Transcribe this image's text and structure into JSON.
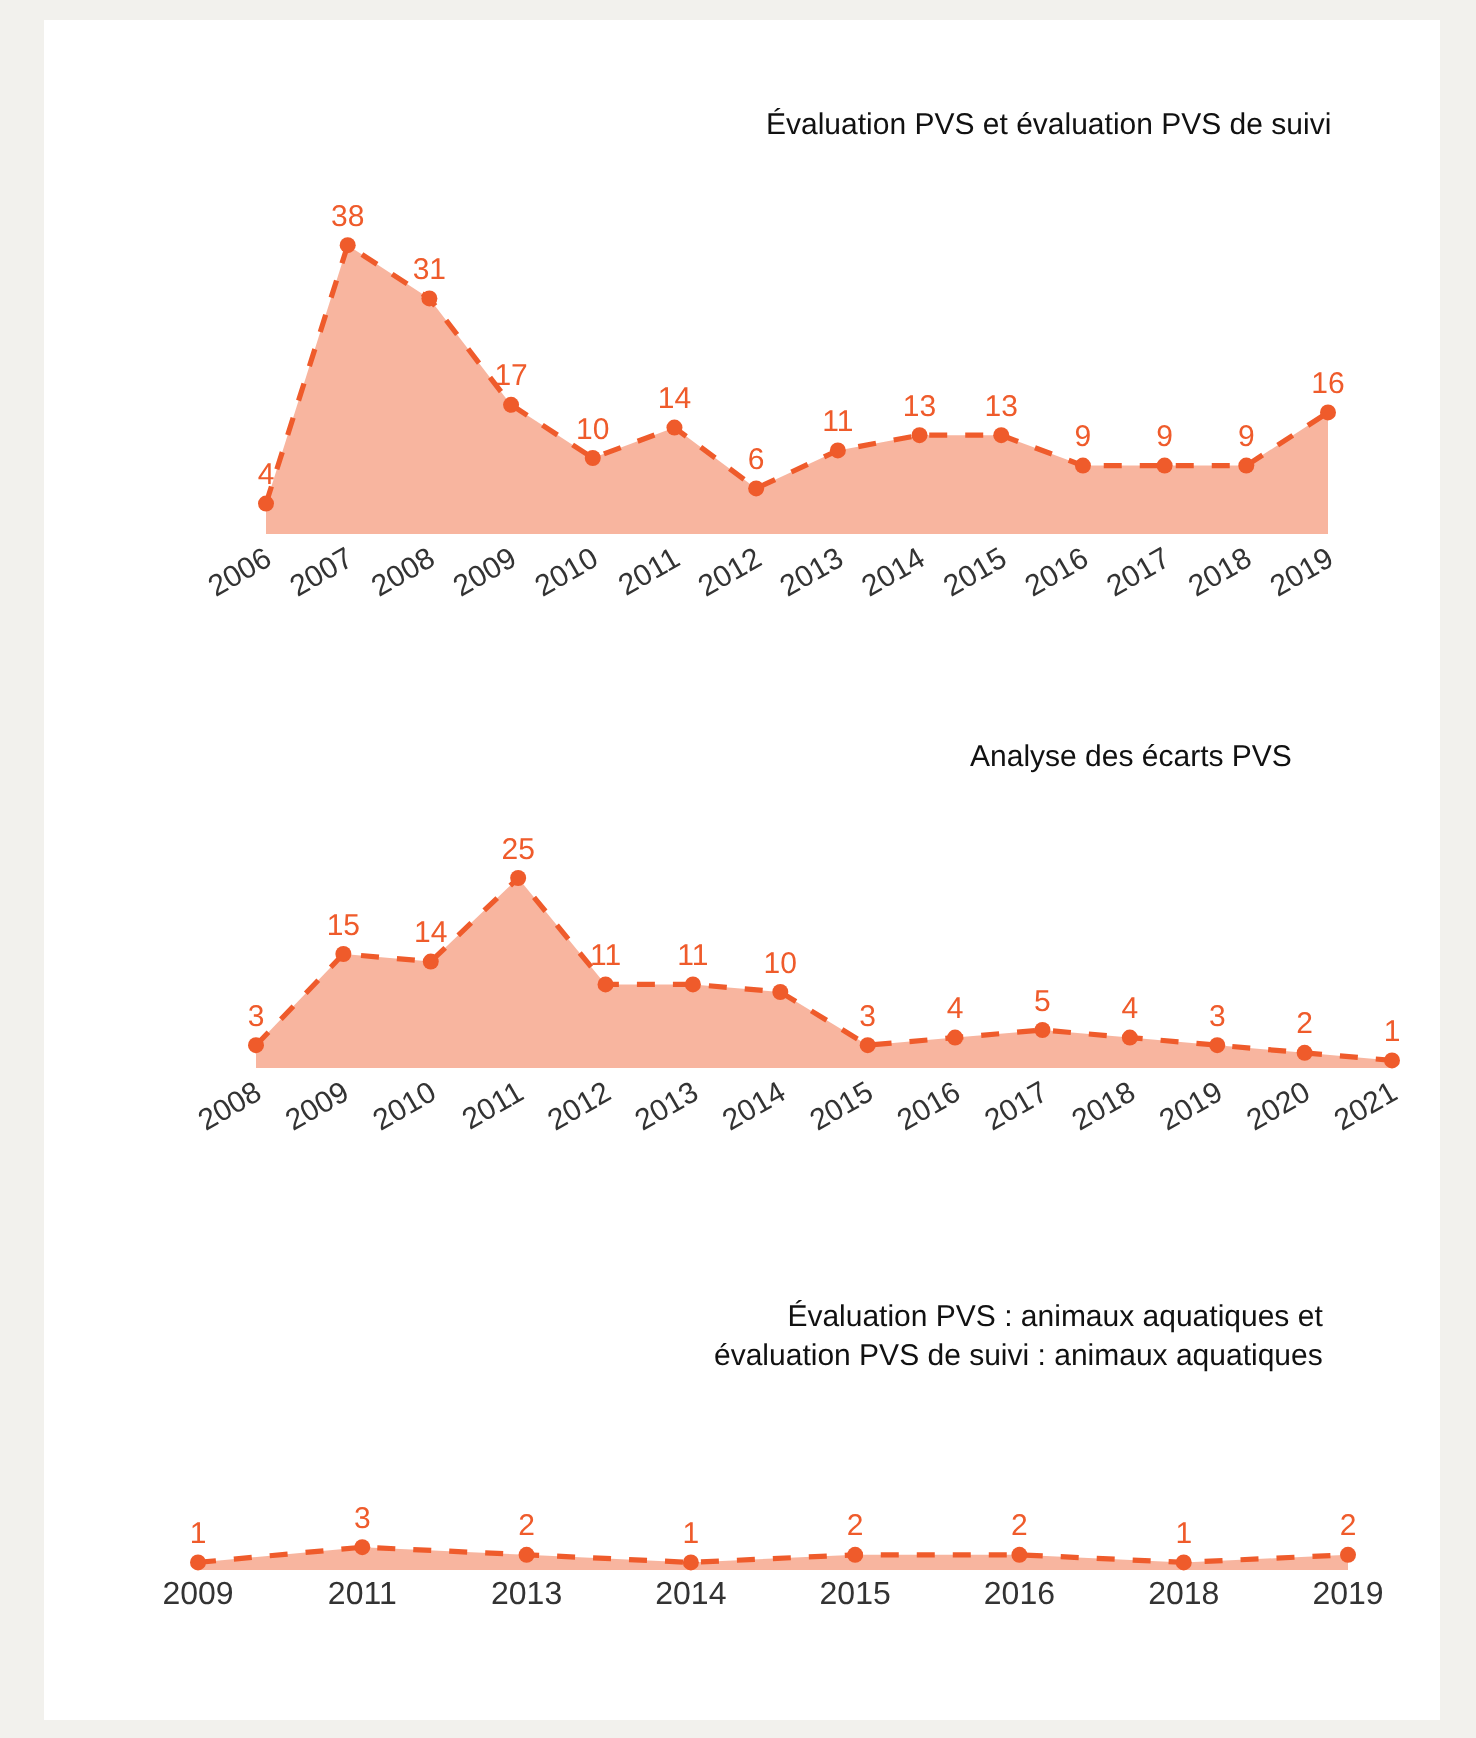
{
  "chart_data": [
    {
      "type": "area",
      "title": "Évaluation PVS et évaluation PVS de suivi",
      "categories": [
        "2006",
        "2007",
        "2008",
        "2009",
        "2010",
        "2011",
        "2012",
        "2013",
        "2014",
        "2015",
        "2016",
        "2017",
        "2018",
        "2019"
      ],
      "values": [
        4,
        38,
        31,
        17,
        10,
        14,
        6,
        11,
        13,
        13,
        9,
        9,
        9,
        16
      ],
      "color": "#ef5b2b",
      "data_labels": true,
      "line_style": "dashed",
      "marker": "circle"
    },
    {
      "type": "area",
      "title": "Analyse des écarts PVS",
      "categories": [
        "2008",
        "2009",
        "2010",
        "2011",
        "2012",
        "2013",
        "2014",
        "2015",
        "2016",
        "2017",
        "2018",
        "2019",
        "2020",
        "2021"
      ],
      "values": [
        3,
        15,
        14,
        25,
        11,
        11,
        10,
        3,
        4,
        5,
        4,
        3,
        2,
        1
      ],
      "color": "#ef5b2b",
      "data_labels": true,
      "line_style": "dashed",
      "marker": "circle"
    },
    {
      "type": "area",
      "title": "Évaluation PVS : animaux aquatiques et évaluation PVS de suivi : animaux aquatiques",
      "categories": [
        "2009",
        "2011",
        "2013",
        "2014",
        "2015",
        "2016",
        "2018",
        "2019"
      ],
      "values": [
        1,
        3,
        2,
        1,
        2,
        2,
        1,
        2
      ],
      "color": "#ef5b2b",
      "data_labels": true,
      "line_style": "dashed",
      "marker": "circle"
    }
  ]
}
